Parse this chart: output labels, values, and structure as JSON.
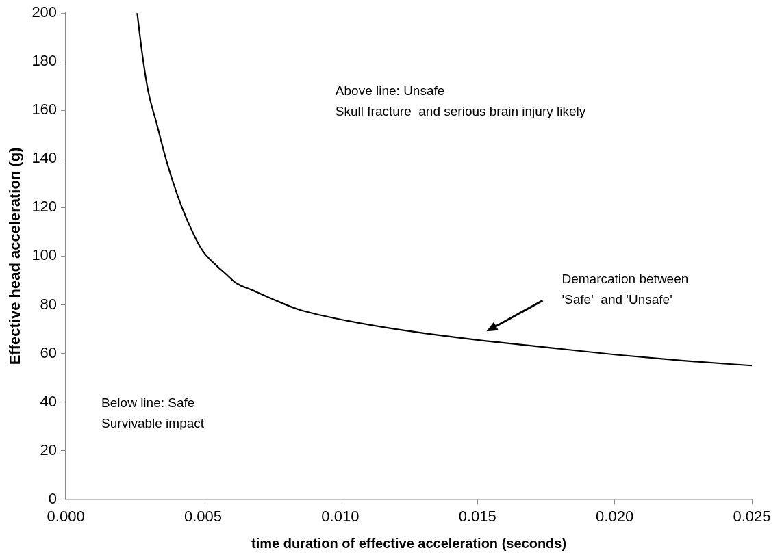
{
  "chart_data": {
    "type": "line",
    "xlabel": "time duration of effective acceleration (seconds)",
    "ylabel": "Effective head acceleration (g)",
    "series": [
      {
        "color": "#000000",
        "x": [
          0.0026,
          0.0028,
          0.003,
          0.0033,
          0.0037,
          0.0042,
          0.0047,
          0.005,
          0.0055,
          0.0058,
          0.0062,
          0.0068,
          0.0075,
          0.0085,
          0.01,
          0.012,
          0.015,
          0.0175,
          0.02,
          0.0225,
          0.025
        ],
        "values": [
          200,
          182,
          168,
          155,
          138,
          121,
          108,
          102,
          96,
          93,
          89,
          86,
          82.5,
          78,
          74,
          70,
          65.5,
          62.5,
          59.5,
          57,
          55
        ]
      }
    ],
    "xlim": [
      0,
      0.025
    ],
    "xticks": [
      {
        "value": 0,
        "label": "0.000"
      },
      {
        "value": 0.005,
        "label": "0.005"
      },
      {
        "value": 0.01,
        "label": "0.010"
      },
      {
        "value": 0.015,
        "label": "0.015"
      },
      {
        "value": 0.02,
        "label": "0.020"
      },
      {
        "value": 0.025,
        "label": "0.025"
      }
    ],
    "ylim": [
      0,
      200
    ],
    "yticks": [
      0,
      20,
      40,
      60,
      80,
      100,
      120,
      140,
      160,
      180,
      200
    ],
    "grid": false,
    "legend": false,
    "marker": "none",
    "line_style": "solid",
    "annotations": [
      "Above line: Unsafe\nSkull fracture  and serious brain injury likely",
      "Demarcation between\n'Safe'  and 'Unsafe'",
      "Below line: Safe\nSurvivable impact"
    ]
  }
}
